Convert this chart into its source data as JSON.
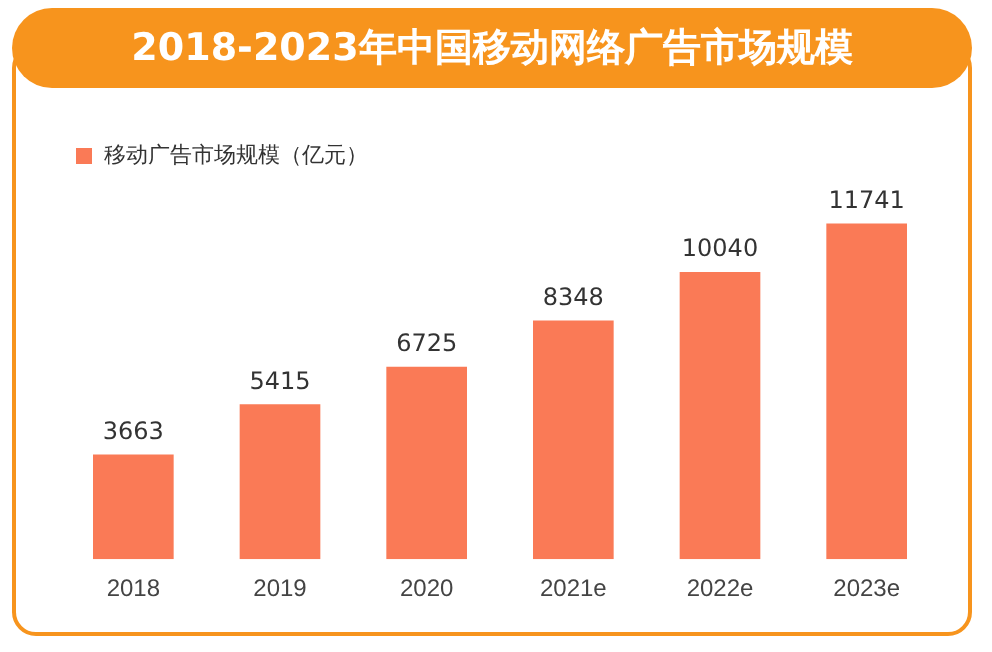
{
  "chart_data": {
    "type": "bar",
    "title": "2018-2023年中国移动网络广告市场规模",
    "categories": [
      "2018",
      "2019",
      "2020",
      "2021e",
      "2022e",
      "2023e"
    ],
    "series": [
      {
        "name": "移动广告市场规模（亿元）",
        "color": "#fa7a56",
        "values": [
          3663,
          5415,
          6725,
          8348,
          10040,
          11741
        ]
      }
    ],
    "data_labels": true,
    "grid": false,
    "legend": "top left"
  }
}
